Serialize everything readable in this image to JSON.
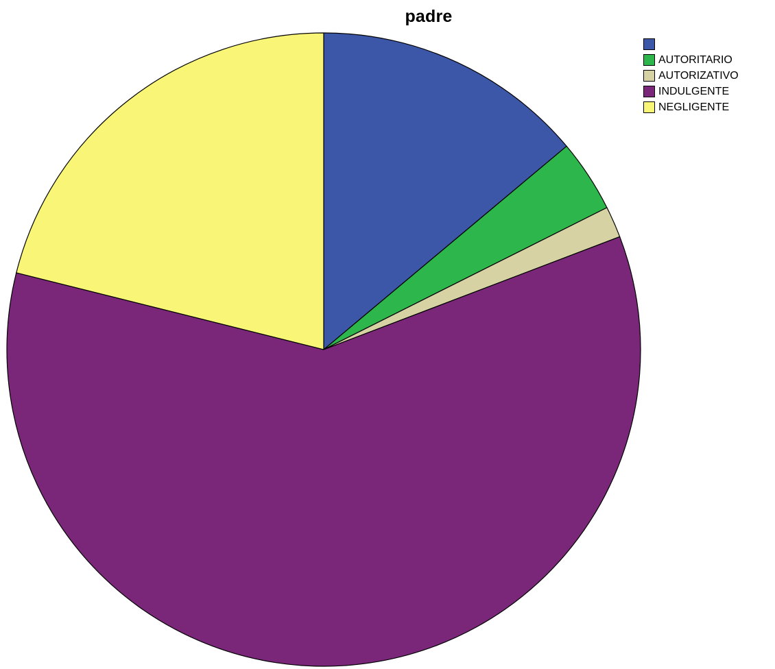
{
  "chart_data": {
    "type": "pie",
    "title": "padre",
    "legend_position": "top-right",
    "slices": [
      {
        "label": "",
        "value": 13.9,
        "color": "#3C57A8"
      },
      {
        "label": "AUTORITARIO",
        "value": 3.7,
        "color": "#2DB64B"
      },
      {
        "label": "AUTORIZATIVO",
        "value": 1.6,
        "color": "#D6D2A3"
      },
      {
        "label": "INDULGENTE",
        "value": 59.7,
        "color": "#7A2779"
      },
      {
        "label": "NEGLIGENTE",
        "value": 21.1,
        "color": "#F9F576"
      }
    ]
  }
}
